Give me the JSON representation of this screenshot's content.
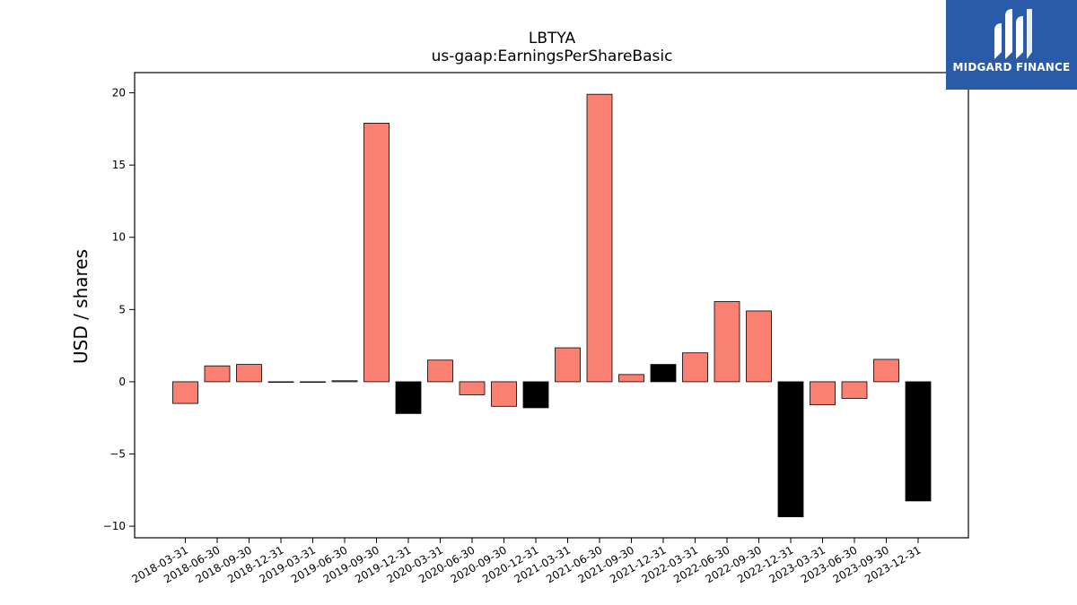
{
  "chart_data": {
    "type": "bar",
    "title": "LBTYA",
    "subtitle": "us-gaap:EarningsPerShareBasic",
    "xlabel": "",
    "ylabel": "USD / shares",
    "ylim": [
      -10.8,
      21.4
    ],
    "yticks": [
      -10,
      -5,
      0,
      5,
      10,
      15,
      20
    ],
    "ytick_labels": [
      "−10",
      "−5",
      "0",
      "5",
      "10",
      "15",
      "20"
    ],
    "grid": false,
    "categories": [
      "2018-03-31",
      "2018-06-30",
      "2018-09-30",
      "2018-12-31",
      "2019-03-31",
      "2019-06-30",
      "2019-09-30",
      "2019-12-31",
      "2020-03-31",
      "2020-06-30",
      "2020-09-30",
      "2020-12-31",
      "2021-03-31",
      "2021-06-30",
      "2021-09-30",
      "2021-12-31",
      "2022-03-31",
      "2022-06-30",
      "2022-09-30",
      "2022-12-31",
      "2023-03-31",
      "2023-06-30",
      "2023-09-30",
      "2023-12-31"
    ],
    "values": [
      -1.5,
      1.1,
      1.2,
      0.0,
      0.0,
      0.07,
      17.9,
      -2.2,
      1.5,
      -0.9,
      -1.7,
      -1.8,
      2.35,
      19.9,
      0.5,
      1.2,
      2.0,
      5.55,
      4.9,
      -9.35,
      -1.6,
      -1.15,
      1.55,
      -8.25
    ],
    "bar_colors": [
      "#fa8072",
      "#fa8072",
      "#fa8072",
      "#fa8072",
      "#fa8072",
      "#fa8072",
      "#fa8072",
      "#000000",
      "#fa8072",
      "#fa8072",
      "#fa8072",
      "#000000",
      "#fa8072",
      "#fa8072",
      "#fa8072",
      "#000000",
      "#fa8072",
      "#fa8072",
      "#fa8072",
      "#000000",
      "#fa8072",
      "#fa8072",
      "#fa8072",
      "#000000"
    ]
  },
  "logo": {
    "text": "MIDGARD FINANCE",
    "color": "#2a5bab"
  }
}
